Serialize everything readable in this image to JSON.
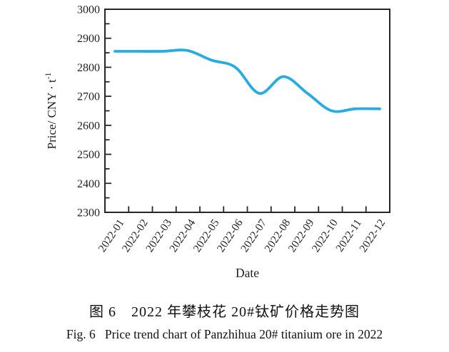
{
  "chart_data": {
    "type": "line",
    "title": "",
    "xlabel": "Date",
    "ylabel": "Price/ CNY · t",
    "ylabel_superscript": "-1",
    "categories": [
      "2022-01",
      "2022-02",
      "2022-03",
      "2022-04",
      "2022-05",
      "2022-06",
      "2022-07",
      "2022-08",
      "2022-09",
      "2022-10",
      "2022-11",
      "2022-12"
    ],
    "series": [
      {
        "name": "Panzhihua 20# titanium ore price",
        "values": [
          2855,
          2855,
          2855,
          2858,
          2825,
          2800,
          2710,
          2768,
          2710,
          2650,
          2657,
          2657
        ]
      }
    ],
    "ylim": [
      2300,
      3000
    ],
    "yticks": [
      2300,
      2400,
      2500,
      2600,
      2700,
      2800,
      2900,
      3000
    ],
    "y_minor_step": 50,
    "grid": false,
    "legend_position": "none",
    "smoothing": "spline",
    "line_color": "#29abe2",
    "axis_color": "#262626",
    "text_color": "#1f1f1f"
  },
  "captions": {
    "zh": "图 6　2022 年攀枝花 20#钛矿价格走势图",
    "en": "Fig. 6   Price trend chart of Panzhihua 20# titanium ore in 2022"
  }
}
